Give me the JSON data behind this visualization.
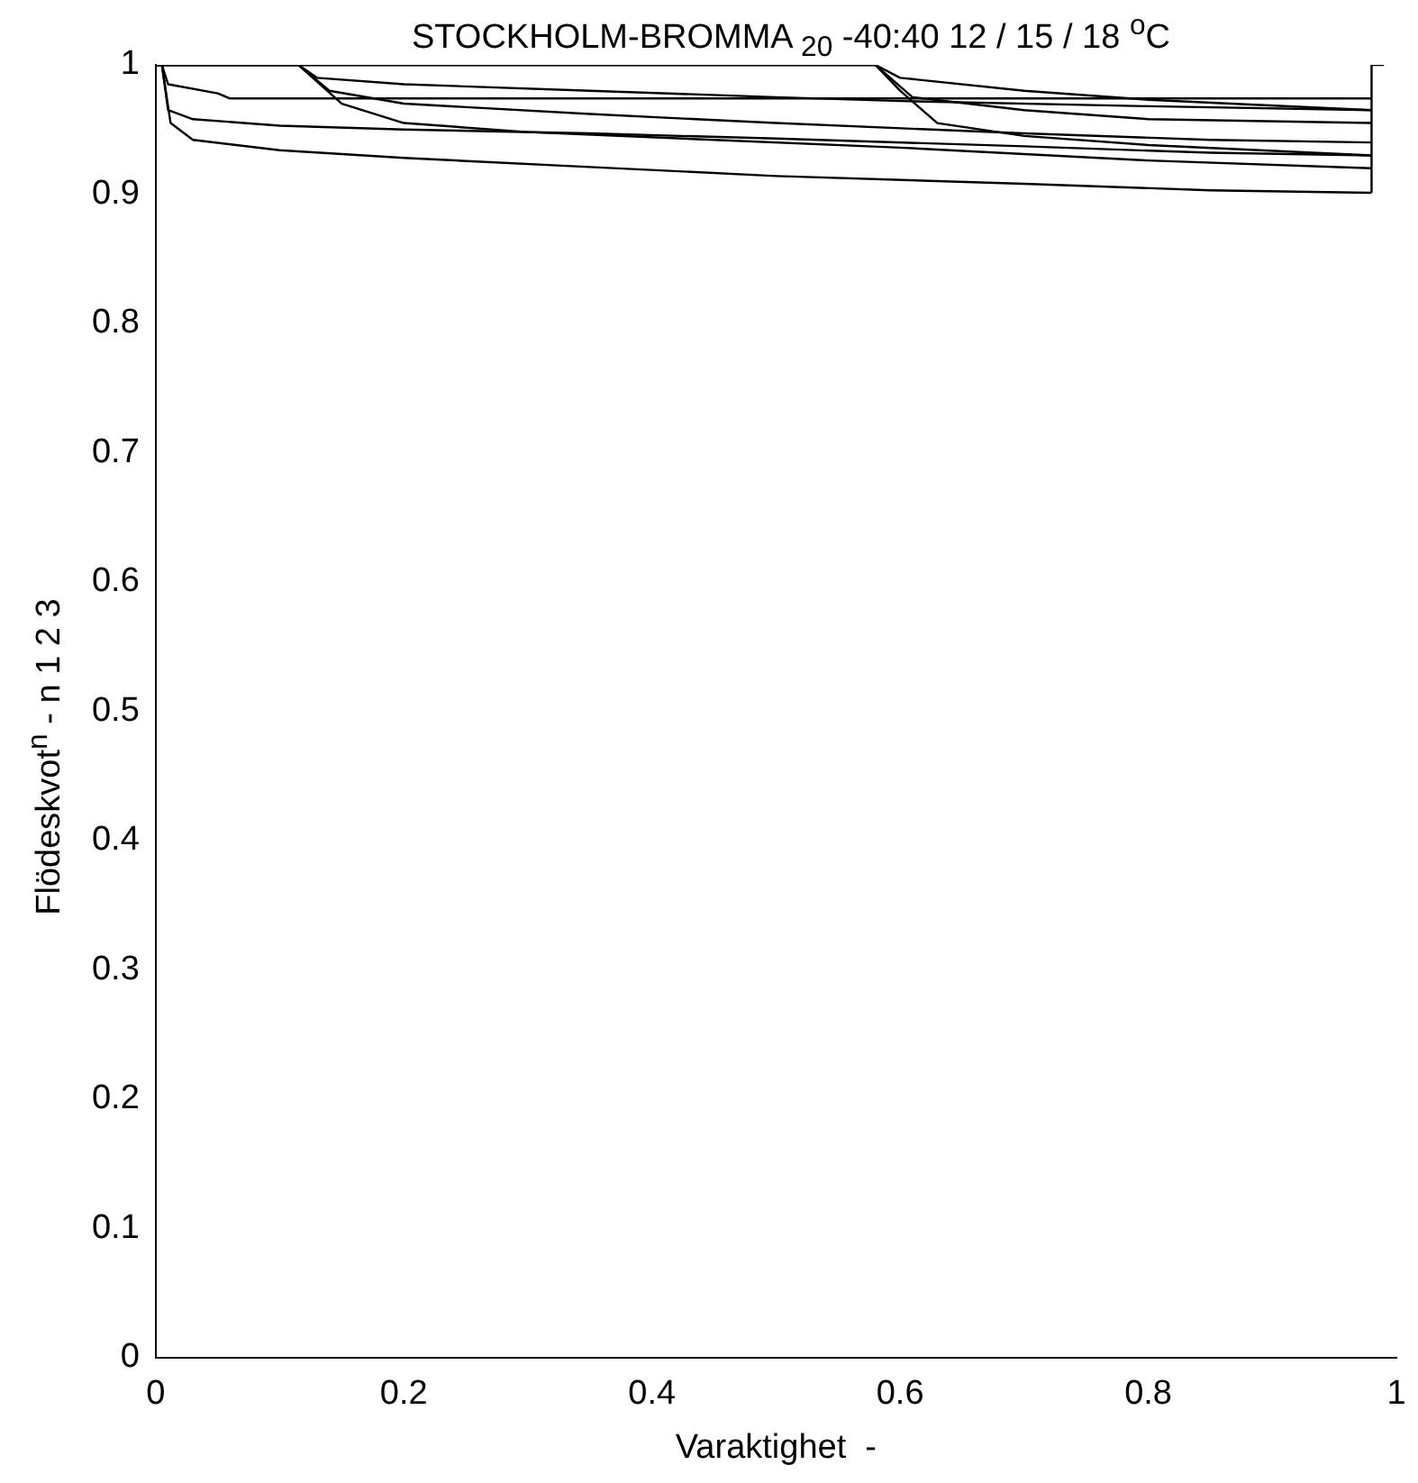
{
  "chart_data": {
    "type": "line",
    "title": "STOCKHOLM-BROMMA $_{20}$  -40:40   12 / 15 / 18 $^{o}$C",
    "xlabel": "Varaktighet  -",
    "ylabel": "Flödeskvot$^{n}$  -  n 1 2 3",
    "xlim": [
      0,
      1
    ],
    "xticks": [
      0,
      0.2,
      0.4,
      0.6,
      0.8,
      1
    ],
    "ylim": [
      0,
      1
    ],
    "yticks": [
      0,
      0.1,
      0.2,
      0.3,
      0.4,
      0.5,
      0.6,
      0.7,
      0.8,
      0.9,
      1
    ],
    "grid": false,
    "legend": false,
    "marker": "none",
    "line_style": "solid",
    "series": [
      {
        "color": "#000000",
        "x": [
          0,
          0.005,
          0.01,
          0.05,
          0.06,
          0.98
        ],
        "values": [
          1,
          1,
          0.985,
          0.978,
          0.974,
          0.974
        ]
      },
      {
        "color": "#000000",
        "x": [
          0,
          0.005,
          0.01,
          0.03,
          0.1,
          0.2,
          0.35,
          0.5,
          0.7,
          0.85,
          0.98
        ],
        "values": [
          1,
          1,
          0.965,
          0.958,
          0.953,
          0.95,
          0.947,
          0.943,
          0.937,
          0.932,
          0.93
        ]
      },
      {
        "color": "#000000",
        "x": [
          0,
          0.005,
          0.012,
          0.03,
          0.1,
          0.2,
          0.35,
          0.5,
          0.7,
          0.85,
          0.98
        ],
        "values": [
          1,
          1,
          0.955,
          0.942,
          0.934,
          0.928,
          0.921,
          0.914,
          0.908,
          0.903,
          0.901
        ]
      },
      {
        "color": "#000000",
        "x": [
          0,
          0.115,
          0.13,
          0.2,
          0.35,
          0.5,
          0.6,
          0.8,
          0.98
        ],
        "values": [
          1,
          1,
          0.99,
          0.985,
          0.98,
          0.975,
          0.972,
          0.968,
          0.965
        ]
      },
      {
        "color": "#000000",
        "x": [
          0,
          0.115,
          0.14,
          0.2,
          0.35,
          0.5,
          0.7,
          0.85,
          0.98
        ],
        "values": [
          1,
          1,
          0.98,
          0.97,
          0.962,
          0.955,
          0.947,
          0.942,
          0.94
        ]
      },
      {
        "color": "#000000",
        "x": [
          0,
          0.115,
          0.15,
          0.2,
          0.3,
          0.45,
          0.6,
          0.8,
          0.98
        ],
        "values": [
          1,
          1,
          0.97,
          0.955,
          0.948,
          0.942,
          0.936,
          0.926,
          0.92
        ]
      },
      {
        "color": "#000000",
        "x": [
          0,
          0.58,
          0.6,
          0.7,
          0.8,
          0.98
        ],
        "values": [
          1,
          1,
          0.99,
          0.98,
          0.973,
          0.965
        ]
      },
      {
        "color": "#000000",
        "x": [
          0,
          0.58,
          0.61,
          0.7,
          0.8,
          0.98
        ],
        "values": [
          1,
          1,
          0.975,
          0.965,
          0.958,
          0.955
        ]
      },
      {
        "color": "#000000",
        "x": [
          0,
          0.58,
          0.6,
          0.63,
          0.7,
          0.8,
          0.98
        ],
        "values": [
          1,
          1,
          0.98,
          0.955,
          0.945,
          0.938,
          0.93
        ]
      },
      {
        "color": "#000000",
        "x": [
          0.98,
          0.98,
          0.99
        ],
        "values": [
          0.901,
          1,
          1
        ]
      }
    ]
  }
}
